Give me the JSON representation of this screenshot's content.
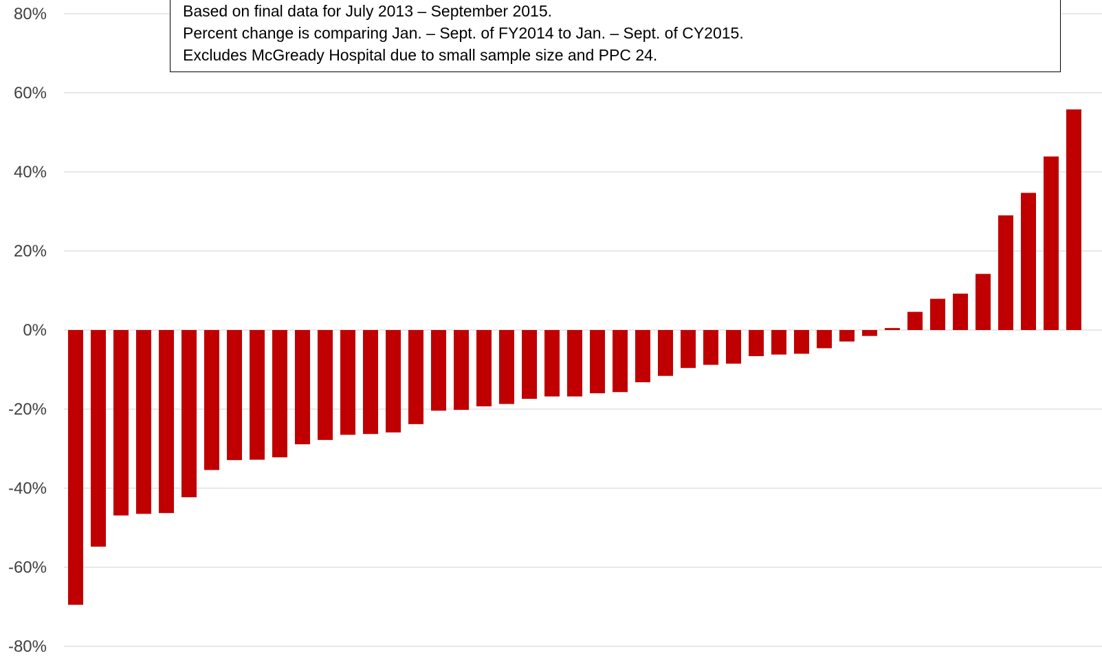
{
  "notes": {
    "line1": "Based on final data for July 2013 – September 2015.",
    "line2": "Percent change is comparing Jan. – Sept. of FY2014 to Jan. – Sept. of CY2015.",
    "line3": "Excludes McGready Hospital due to small sample size and PPC 24."
  },
  "chart_data": {
    "type": "bar",
    "title": "",
    "xlabel": "",
    "ylabel": "",
    "ylim": [
      -80,
      80
    ],
    "yticks": [
      -80,
      -60,
      -40,
      -20,
      0,
      20,
      40,
      60,
      80
    ],
    "ytick_labels": [
      "-80%",
      "-60%",
      "-40%",
      "-20%",
      "0%",
      "20%",
      "40%",
      "60%",
      "80%"
    ],
    "grid": true,
    "bar_color": "#C00000",
    "values": [
      -69.5,
      -54.8,
      -46.9,
      -46.5,
      -46.3,
      -42.3,
      -35.4,
      -32.9,
      -32.8,
      -32.2,
      -28.9,
      -27.8,
      -26.5,
      -26.3,
      -25.9,
      -23.8,
      -20.4,
      -20.2,
      -19.3,
      -18.7,
      -17.4,
      -16.8,
      -16.8,
      -16.0,
      -15.7,
      -13.2,
      -11.6,
      -9.6,
      -8.8,
      -8.5,
      -6.6,
      -6.2,
      -6.0,
      -4.6,
      -2.9,
      -1.5,
      0.5,
      4.6,
      7.9,
      9.2,
      14.2,
      29.0,
      34.7,
      43.9,
      55.8
    ]
  }
}
